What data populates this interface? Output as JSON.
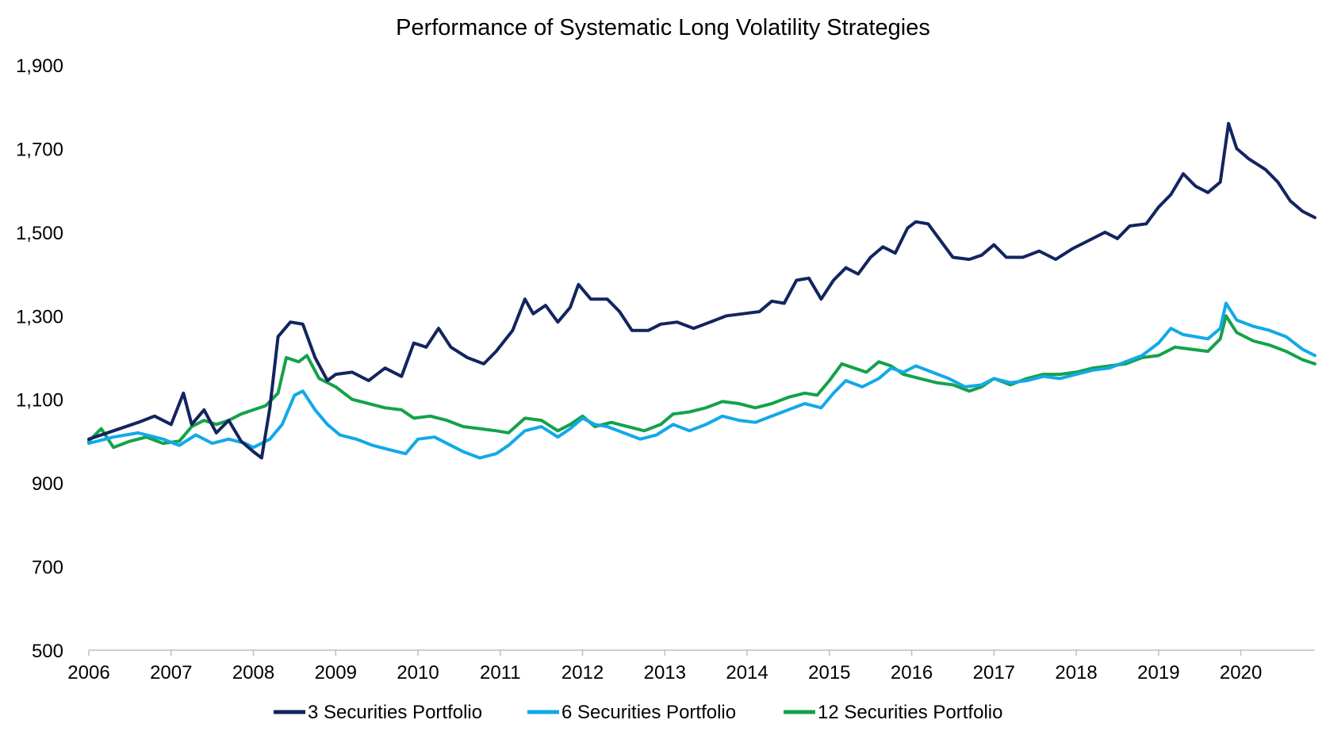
{
  "chart_data": {
    "type": "line",
    "title": "Performance of Systematic Long Volatility Strategies",
    "xlabel": "",
    "ylabel": "",
    "ylim": [
      500,
      1900
    ],
    "yticks": [
      "500",
      "700",
      "900",
      "1,100",
      "1,300",
      "1,500",
      "1,700",
      "1,900"
    ],
    "xlim": [
      2006,
      2020.9
    ],
    "xticks": [
      "2006",
      "2007",
      "2008",
      "2009",
      "2010",
      "2011",
      "2012",
      "2013",
      "2014",
      "2015",
      "2016",
      "2017",
      "2018",
      "2019",
      "2020"
    ],
    "grid": false,
    "legend_position": "bottom",
    "series": [
      {
        "name": "3 Securities Portfolio",
        "color": "#13245f",
        "points": [
          [
            2006.0,
            1005
          ],
          [
            2006.3,
            1025
          ],
          [
            2006.6,
            1045
          ],
          [
            2006.8,
            1060
          ],
          [
            2007.0,
            1040
          ],
          [
            2007.15,
            1115
          ],
          [
            2007.25,
            1040
          ],
          [
            2007.4,
            1075
          ],
          [
            2007.55,
            1020
          ],
          [
            2007.7,
            1050
          ],
          [
            2007.85,
            1000
          ],
          [
            2008.0,
            975
          ],
          [
            2008.1,
            960
          ],
          [
            2008.2,
            1080
          ],
          [
            2008.3,
            1250
          ],
          [
            2008.45,
            1285
          ],
          [
            2008.6,
            1280
          ],
          [
            2008.75,
            1200
          ],
          [
            2008.9,
            1145
          ],
          [
            2009.0,
            1160
          ],
          [
            2009.2,
            1165
          ],
          [
            2009.4,
            1145
          ],
          [
            2009.6,
            1175
          ],
          [
            2009.8,
            1155
          ],
          [
            2009.95,
            1235
          ],
          [
            2010.1,
            1225
          ],
          [
            2010.25,
            1270
          ],
          [
            2010.4,
            1225
          ],
          [
            2010.6,
            1200
          ],
          [
            2010.8,
            1185
          ],
          [
            2010.95,
            1215
          ],
          [
            2011.15,
            1265
          ],
          [
            2011.3,
            1340
          ],
          [
            2011.4,
            1305
          ],
          [
            2011.55,
            1325
          ],
          [
            2011.7,
            1285
          ],
          [
            2011.85,
            1320
          ],
          [
            2011.95,
            1375
          ],
          [
            2012.1,
            1340
          ],
          [
            2012.3,
            1340
          ],
          [
            2012.45,
            1310
          ],
          [
            2012.6,
            1265
          ],
          [
            2012.8,
            1265
          ],
          [
            2012.95,
            1280
          ],
          [
            2013.15,
            1285
          ],
          [
            2013.35,
            1270
          ],
          [
            2013.55,
            1285
          ],
          [
            2013.75,
            1300
          ],
          [
            2013.95,
            1305
          ],
          [
            2014.15,
            1310
          ],
          [
            2014.3,
            1335
          ],
          [
            2014.45,
            1330
          ],
          [
            2014.6,
            1385
          ],
          [
            2014.75,
            1390
          ],
          [
            2014.9,
            1340
          ],
          [
            2015.05,
            1385
          ],
          [
            2015.2,
            1415
          ],
          [
            2015.35,
            1400
          ],
          [
            2015.5,
            1440
          ],
          [
            2015.65,
            1465
          ],
          [
            2015.8,
            1450
          ],
          [
            2015.95,
            1510
          ],
          [
            2016.05,
            1525
          ],
          [
            2016.2,
            1520
          ],
          [
            2016.35,
            1480
          ],
          [
            2016.5,
            1440
          ],
          [
            2016.7,
            1435
          ],
          [
            2016.85,
            1445
          ],
          [
            2017.0,
            1470
          ],
          [
            2017.15,
            1440
          ],
          [
            2017.35,
            1440
          ],
          [
            2017.55,
            1455
          ],
          [
            2017.75,
            1435
          ],
          [
            2017.95,
            1460
          ],
          [
            2018.15,
            1480
          ],
          [
            2018.35,
            1500
          ],
          [
            2018.5,
            1485
          ],
          [
            2018.65,
            1515
          ],
          [
            2018.85,
            1520
          ],
          [
            2019.0,
            1560
          ],
          [
            2019.15,
            1590
          ],
          [
            2019.3,
            1640
          ],
          [
            2019.45,
            1610
          ],
          [
            2019.6,
            1595
          ],
          [
            2019.75,
            1620
          ],
          [
            2019.85,
            1760
          ],
          [
            2019.95,
            1700
          ],
          [
            2020.1,
            1675
          ],
          [
            2020.3,
            1650
          ],
          [
            2020.45,
            1620
          ],
          [
            2020.6,
            1575
          ],
          [
            2020.75,
            1550
          ],
          [
            2020.9,
            1535
          ]
        ]
      },
      {
        "name": "6 Securities Portfolio",
        "color": "#12a9e8",
        "points": [
          [
            2006.0,
            995
          ],
          [
            2006.3,
            1010
          ],
          [
            2006.6,
            1020
          ],
          [
            2006.9,
            1005
          ],
          [
            2007.1,
            990
          ],
          [
            2007.3,
            1015
          ],
          [
            2007.5,
            995
          ],
          [
            2007.7,
            1005
          ],
          [
            2007.9,
            995
          ],
          [
            2008.0,
            985
          ],
          [
            2008.2,
            1005
          ],
          [
            2008.35,
            1040
          ],
          [
            2008.5,
            1110
          ],
          [
            2008.6,
            1120
          ],
          [
            2008.75,
            1075
          ],
          [
            2008.9,
            1040
          ],
          [
            2009.05,
            1015
          ],
          [
            2009.25,
            1005
          ],
          [
            2009.45,
            990
          ],
          [
            2009.65,
            980
          ],
          [
            2009.85,
            970
          ],
          [
            2010.0,
            1005
          ],
          [
            2010.2,
            1010
          ],
          [
            2010.4,
            990
          ],
          [
            2010.55,
            975
          ],
          [
            2010.75,
            960
          ],
          [
            2010.95,
            970
          ],
          [
            2011.1,
            990
          ],
          [
            2011.3,
            1025
          ],
          [
            2011.5,
            1035
          ],
          [
            2011.7,
            1010
          ],
          [
            2011.85,
            1030
          ],
          [
            2012.0,
            1055
          ],
          [
            2012.15,
            1040
          ],
          [
            2012.3,
            1035
          ],
          [
            2012.5,
            1020
          ],
          [
            2012.7,
            1005
          ],
          [
            2012.9,
            1015
          ],
          [
            2013.1,
            1040
          ],
          [
            2013.3,
            1025
          ],
          [
            2013.5,
            1040
          ],
          [
            2013.7,
            1060
          ],
          [
            2013.9,
            1050
          ],
          [
            2014.1,
            1045
          ],
          [
            2014.3,
            1060
          ],
          [
            2014.5,
            1075
          ],
          [
            2014.7,
            1090
          ],
          [
            2014.9,
            1080
          ],
          [
            2015.05,
            1115
          ],
          [
            2015.2,
            1145
          ],
          [
            2015.4,
            1130
          ],
          [
            2015.6,
            1150
          ],
          [
            2015.75,
            1175
          ],
          [
            2015.9,
            1165
          ],
          [
            2016.05,
            1180
          ],
          [
            2016.25,
            1165
          ],
          [
            2016.45,
            1150
          ],
          [
            2016.65,
            1130
          ],
          [
            2016.85,
            1135
          ],
          [
            2017.0,
            1150
          ],
          [
            2017.2,
            1140
          ],
          [
            2017.4,
            1145
          ],
          [
            2017.6,
            1155
          ],
          [
            2017.8,
            1150
          ],
          [
            2018.0,
            1160
          ],
          [
            2018.2,
            1170
          ],
          [
            2018.4,
            1175
          ],
          [
            2018.6,
            1190
          ],
          [
            2018.8,
            1205
          ],
          [
            2019.0,
            1235
          ],
          [
            2019.15,
            1270
          ],
          [
            2019.3,
            1255
          ],
          [
            2019.45,
            1250
          ],
          [
            2019.6,
            1245
          ],
          [
            2019.75,
            1270
          ],
          [
            2019.82,
            1330
          ],
          [
            2019.95,
            1290
          ],
          [
            2020.15,
            1275
          ],
          [
            2020.35,
            1265
          ],
          [
            2020.55,
            1250
          ],
          [
            2020.75,
            1220
          ],
          [
            2020.9,
            1205
          ]
        ]
      },
      {
        "name": "12 Securities Portfolio",
        "color": "#14a24a",
        "points": [
          [
            2006.0,
            1000
          ],
          [
            2006.15,
            1030
          ],
          [
            2006.3,
            985
          ],
          [
            2006.5,
            1000
          ],
          [
            2006.7,
            1010
          ],
          [
            2006.9,
            995
          ],
          [
            2007.1,
            1000
          ],
          [
            2007.25,
            1035
          ],
          [
            2007.4,
            1050
          ],
          [
            2007.55,
            1040
          ],
          [
            2007.7,
            1050
          ],
          [
            2007.85,
            1065
          ],
          [
            2008.0,
            1075
          ],
          [
            2008.15,
            1085
          ],
          [
            2008.3,
            1115
          ],
          [
            2008.4,
            1200
          ],
          [
            2008.55,
            1190
          ],
          [
            2008.65,
            1205
          ],
          [
            2008.8,
            1150
          ],
          [
            2009.0,
            1130
          ],
          [
            2009.2,
            1100
          ],
          [
            2009.4,
            1090
          ],
          [
            2009.6,
            1080
          ],
          [
            2009.8,
            1075
          ],
          [
            2009.95,
            1055
          ],
          [
            2010.15,
            1060
          ],
          [
            2010.35,
            1050
          ],
          [
            2010.55,
            1035
          ],
          [
            2010.75,
            1030
          ],
          [
            2010.95,
            1025
          ],
          [
            2011.1,
            1020
          ],
          [
            2011.3,
            1055
          ],
          [
            2011.5,
            1050
          ],
          [
            2011.7,
            1025
          ],
          [
            2011.85,
            1040
          ],
          [
            2012.0,
            1060
          ],
          [
            2012.15,
            1035
          ],
          [
            2012.35,
            1045
          ],
          [
            2012.55,
            1035
          ],
          [
            2012.75,
            1025
          ],
          [
            2012.95,
            1040
          ],
          [
            2013.1,
            1065
          ],
          [
            2013.3,
            1070
          ],
          [
            2013.5,
            1080
          ],
          [
            2013.7,
            1095
          ],
          [
            2013.9,
            1090
          ],
          [
            2014.1,
            1080
          ],
          [
            2014.3,
            1090
          ],
          [
            2014.5,
            1105
          ],
          [
            2014.7,
            1115
          ],
          [
            2014.85,
            1110
          ],
          [
            2015.0,
            1145
          ],
          [
            2015.15,
            1185
          ],
          [
            2015.3,
            1175
          ],
          [
            2015.45,
            1165
          ],
          [
            2015.6,
            1190
          ],
          [
            2015.75,
            1180
          ],
          [
            2015.9,
            1160
          ],
          [
            2016.1,
            1150
          ],
          [
            2016.3,
            1140
          ],
          [
            2016.5,
            1135
          ],
          [
            2016.7,
            1120
          ],
          [
            2016.85,
            1130
          ],
          [
            2017.0,
            1150
          ],
          [
            2017.2,
            1135
          ],
          [
            2017.4,
            1150
          ],
          [
            2017.6,
            1160
          ],
          [
            2017.8,
            1160
          ],
          [
            2018.0,
            1165
          ],
          [
            2018.2,
            1175
          ],
          [
            2018.4,
            1180
          ],
          [
            2018.6,
            1185
          ],
          [
            2018.8,
            1200
          ],
          [
            2019.0,
            1205
          ],
          [
            2019.2,
            1225
          ],
          [
            2019.4,
            1220
          ],
          [
            2019.6,
            1215
          ],
          [
            2019.75,
            1245
          ],
          [
            2019.82,
            1300
          ],
          [
            2019.95,
            1260
          ],
          [
            2020.15,
            1240
          ],
          [
            2020.35,
            1230
          ],
          [
            2020.55,
            1215
          ],
          [
            2020.75,
            1195
          ],
          [
            2020.9,
            1185
          ]
        ]
      }
    ]
  }
}
